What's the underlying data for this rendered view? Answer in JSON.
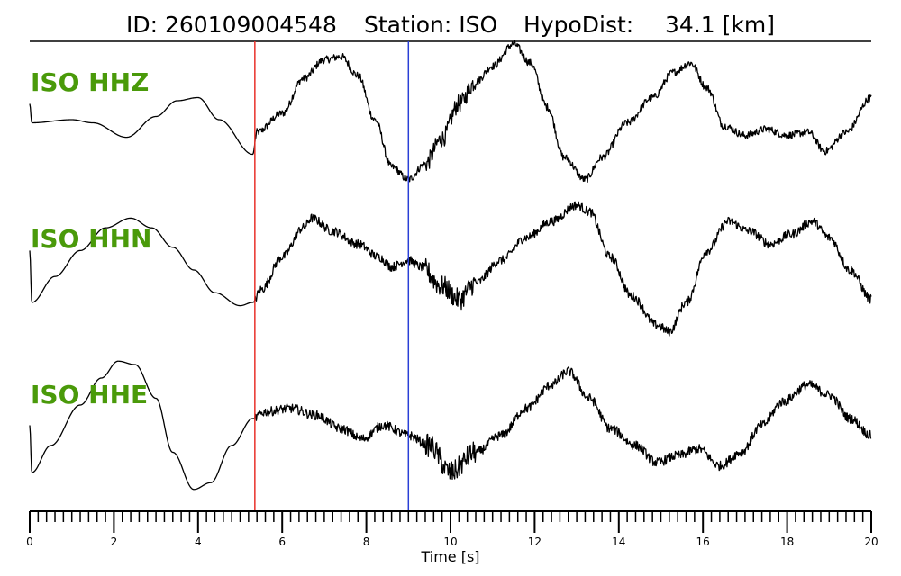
{
  "title": {
    "id_text": "ID: 260109004548",
    "station_text": "Station: ISO",
    "hypo_label": "HypoDist:",
    "hypo_value": "34.1 [km]"
  },
  "chart_data": {
    "type": "line",
    "xlabel": "Time [s]",
    "xlim": [
      0,
      20
    ],
    "x_ticks": [
      "0",
      "2",
      "4",
      "6",
      "8",
      "10",
      "12",
      "14",
      "16",
      "18",
      "20"
    ],
    "markers": [
      {
        "name": "red-pick",
        "time": 5.35,
        "color": "#e8302a"
      },
      {
        "name": "blue-pick",
        "time": 9.0,
        "color": "#2a3fd6"
      }
    ],
    "series": [
      {
        "name": "ISO HHZ",
        "color": "#000000",
        "noise_after": 5.35,
        "noise_amp": 0.06,
        "points": [
          [
            0,
            0.35
          ],
          [
            0.05,
            0.05
          ],
          [
            1,
            0.1
          ],
          [
            1.5,
            0.05
          ],
          [
            2.3,
            -0.18
          ],
          [
            3,
            0.15
          ],
          [
            3.5,
            0.4
          ],
          [
            4,
            0.45
          ],
          [
            4.5,
            0.1
          ],
          [
            5.3,
            -0.45
          ],
          [
            5.4,
            -0.1
          ],
          [
            6,
            0.2
          ],
          [
            6.5,
            0.75
          ],
          [
            7,
            1.05
          ],
          [
            7.4,
            1.1
          ],
          [
            7.8,
            0.8
          ],
          [
            8.2,
            0.1
          ],
          [
            8.6,
            -0.65
          ],
          [
            9,
            -0.85
          ],
          [
            9.4,
            -0.6
          ],
          [
            9.8,
            -0.2
          ],
          [
            10.2,
            0.35
          ],
          [
            10.6,
            0.7
          ],
          [
            11,
            0.95
          ],
          [
            11.5,
            1.3
          ],
          [
            11.9,
            1.0
          ],
          [
            12.3,
            0.3
          ],
          [
            12.7,
            -0.5
          ],
          [
            13.2,
            -0.85
          ],
          [
            13.6,
            -0.5
          ],
          [
            14.2,
            0.05
          ],
          [
            14.8,
            0.45
          ],
          [
            15.3,
            0.85
          ],
          [
            15.7,
            1.0
          ],
          [
            16.1,
            0.6
          ],
          [
            16.5,
            0.0
          ],
          [
            17.0,
            -0.15
          ],
          [
            17.5,
            -0.05
          ],
          [
            18,
            -0.15
          ],
          [
            18.5,
            -0.1
          ],
          [
            18.9,
            -0.4
          ],
          [
            19.4,
            -0.1
          ],
          [
            20,
            0.45
          ]
        ]
      },
      {
        "name": "ISO HHN",
        "color": "#000000",
        "noise_after": 5.35,
        "noise_amp": 0.07,
        "points": [
          [
            0,
            0.3
          ],
          [
            0.05,
            -0.5
          ],
          [
            0.6,
            -0.1
          ],
          [
            1.2,
            0.3
          ],
          [
            1.8,
            0.65
          ],
          [
            2.4,
            0.8
          ],
          [
            2.9,
            0.65
          ],
          [
            3.4,
            0.35
          ],
          [
            3.9,
            0.0
          ],
          [
            4.4,
            -0.35
          ],
          [
            5.0,
            -0.55
          ],
          [
            5.3,
            -0.5
          ],
          [
            5.5,
            -0.3
          ],
          [
            6.0,
            0.2
          ],
          [
            6.5,
            0.65
          ],
          [
            6.7,
            0.8
          ],
          [
            7.2,
            0.6
          ],
          [
            7.8,
            0.4
          ],
          [
            8.3,
            0.2
          ],
          [
            8.6,
            0.05
          ],
          [
            9.0,
            0.15
          ],
          [
            9.3,
            0.05
          ],
          [
            9.8,
            -0.25
          ],
          [
            10.2,
            -0.45
          ],
          [
            10.6,
            -0.2
          ],
          [
            11.2,
            0.15
          ],
          [
            11.8,
            0.5
          ],
          [
            12.4,
            0.75
          ],
          [
            13.0,
            1.0
          ],
          [
            13.3,
            0.9
          ],
          [
            13.8,
            0.2
          ],
          [
            14.3,
            -0.4
          ],
          [
            14.9,
            -0.85
          ],
          [
            15.2,
            -0.95
          ],
          [
            15.6,
            -0.5
          ],
          [
            16.1,
            0.3
          ],
          [
            16.6,
            0.75
          ],
          [
            17.1,
            0.6
          ],
          [
            17.6,
            0.4
          ],
          [
            18.1,
            0.55
          ],
          [
            18.6,
            0.75
          ],
          [
            19.0,
            0.5
          ],
          [
            19.5,
            0.0
          ],
          [
            20,
            -0.45
          ]
        ]
      },
      {
        "name": "ISO HHE",
        "color": "#000000",
        "noise_after": 5.35,
        "noise_amp": 0.07,
        "points": [
          [
            0,
            0.1
          ],
          [
            0.05,
            -0.6
          ],
          [
            0.5,
            -0.2
          ],
          [
            1.2,
            0.4
          ],
          [
            1.7,
            0.8
          ],
          [
            2.1,
            1.05
          ],
          [
            2.5,
            1.0
          ],
          [
            3.0,
            0.5
          ],
          [
            3.4,
            -0.3
          ],
          [
            3.9,
            -0.85
          ],
          [
            4.3,
            -0.75
          ],
          [
            4.8,
            -0.2
          ],
          [
            5.3,
            0.2
          ],
          [
            5.6,
            0.3
          ],
          [
            6.2,
            0.35
          ],
          [
            6.8,
            0.25
          ],
          [
            7.4,
            0.05
          ],
          [
            7.9,
            -0.1
          ],
          [
            8.4,
            0.1
          ],
          [
            9.0,
            -0.05
          ],
          [
            9.5,
            -0.2
          ],
          [
            10.0,
            -0.6
          ],
          [
            10.6,
            -0.3
          ],
          [
            11.2,
            -0.05
          ],
          [
            11.8,
            0.35
          ],
          [
            12.4,
            0.7
          ],
          [
            12.8,
            0.9
          ],
          [
            13.3,
            0.5
          ],
          [
            13.8,
            0.05
          ],
          [
            14.4,
            -0.2
          ],
          [
            14.9,
            -0.45
          ],
          [
            15.4,
            -0.35
          ],
          [
            15.9,
            -0.25
          ],
          [
            16.4,
            -0.5
          ],
          [
            16.9,
            -0.3
          ],
          [
            17.4,
            0.1
          ],
          [
            17.9,
            0.45
          ],
          [
            18.5,
            0.7
          ],
          [
            19.0,
            0.55
          ],
          [
            19.5,
            0.2
          ],
          [
            20,
            -0.05
          ]
        ]
      }
    ]
  }
}
